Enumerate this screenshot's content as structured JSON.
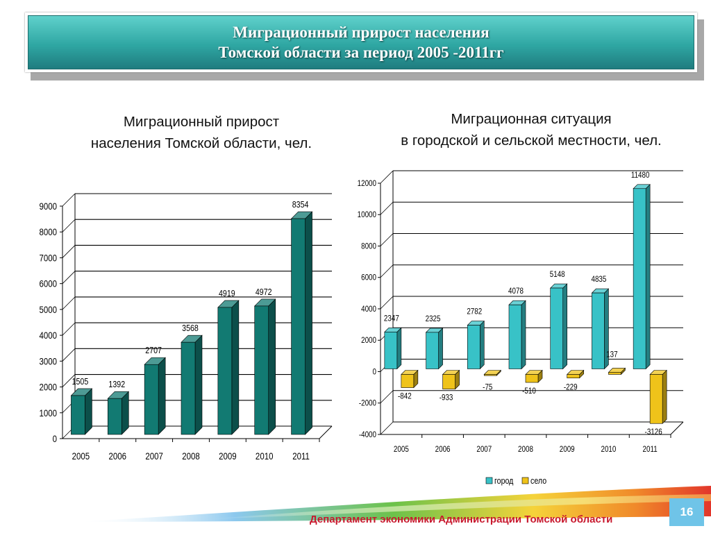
{
  "header": {
    "title_line1": "Миграционный прирост населения",
    "title_line2": "Томской области за период 2005 -2011гг"
  },
  "left_subtitle": {
    "line1": "Миграционный прирост",
    "line2": "населения Томской области, чел."
  },
  "right_subtitle": {
    "line1": "Миграционная ситуация",
    "line2": "в городской и сельской местности, чел."
  },
  "footer": {
    "department": "Департамент экономики Администрации Томской области",
    "page_number": "16"
  },
  "colors": {
    "left_bar": "#127a72",
    "city_bar": "#38c2c7",
    "village_bar": "#efc31a",
    "banner": "#2fa7a3",
    "footer_text": "#c8192e",
    "badge": "#6fc4e8"
  },
  "chart_data": [
    {
      "type": "bar",
      "title": "Миграционный прирост населения Томской области, чел.",
      "categories": [
        "2005",
        "2006",
        "2007",
        "2008",
        "2009",
        "2010",
        "2011"
      ],
      "values": [
        1505,
        1392,
        2707,
        3568,
        4919,
        4972,
        8354
      ],
      "value_labels": [
        "1505",
        "1392",
        "2707",
        "3568",
        "4919",
        "4972",
        "8354"
      ],
      "ylim": [
        0,
        9000
      ],
      "yticks": [
        "0",
        "1000",
        "2000",
        "3000",
        "4000",
        "5000",
        "6000",
        "7000",
        "8000",
        "9000"
      ],
      "grid": true,
      "legend": "none"
    },
    {
      "type": "bar",
      "title": "Миграционная ситуация в городской и сельской местности, чел.",
      "categories": [
        "2005",
        "2006",
        "2007",
        "2008",
        "2009",
        "2010",
        "2011"
      ],
      "series": [
        {
          "name": "город",
          "values": [
            2347,
            2325,
            2782,
            4078,
            5148,
            4835,
            11480
          ],
          "value_labels": [
            "2347",
            "2325",
            "2782",
            "4078",
            "5148",
            "4835",
            "11480"
          ]
        },
        {
          "name": "село",
          "values": [
            -842,
            -933,
            -75,
            -510,
            -229,
            137,
            -3126
          ],
          "value_labels": [
            "-842",
            "-933",
            "-75",
            "-510",
            "-229",
            "137",
            "-3126"
          ]
        }
      ],
      "ylim": [
        -4000,
        12000
      ],
      "yticks": [
        "-4000",
        "-2000",
        "0",
        "2000",
        "4000",
        "6000",
        "8000",
        "10000",
        "12000"
      ],
      "grid": true,
      "legend": "bottom"
    }
  ]
}
